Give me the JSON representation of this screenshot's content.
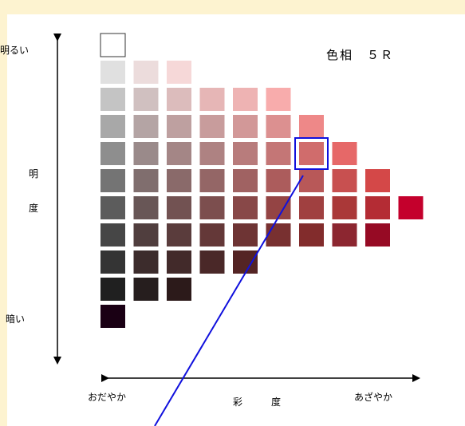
{
  "hue_label": "色相　５Ｒ",
  "axes": {
    "lightness_top": "明るい",
    "lightness_title_1": "明",
    "lightness_title_2": "度",
    "lightness_bottom": "暗い",
    "chroma_left": "おだやか",
    "chroma_title_1": "彩",
    "chroma_title_2": "度",
    "chroma_right": "あざやか"
  },
  "colors": {
    "arrow": "#000000",
    "highlight": "#1010dd",
    "pointer": "#1010dd",
    "background": "#fdf3d0"
  },
  "grid": {
    "rows": [
      {
        "row": 0,
        "cells": [
          "#ffffff"
        ],
        "outlined": true
      },
      {
        "row": 1,
        "cells": [
          "#e0e0e0",
          "#ecdcdc",
          "#f6d8d8"
        ]
      },
      {
        "row": 2,
        "cells": [
          "#c4c4c4",
          "#d0c0c0",
          "#dcbcbc",
          "#e6b6b6",
          "#eeb3b3",
          "#f8acac"
        ]
      },
      {
        "row": 3,
        "cells": [
          "#a8a8a8",
          "#b4a4a4",
          "#bea0a0",
          "#c89c9c",
          "#d29898",
          "#dc9090",
          "#ee8888"
        ]
      },
      {
        "row": 4,
        "cells": [
          "#8e8e8e",
          "#9a8a8a",
          "#a48686",
          "#ae8282",
          "#b87c7c",
          "#c47676",
          "#d06c6c",
          "#e66868"
        ]
      },
      {
        "row": 5,
        "cells": [
          "#747474",
          "#806e6e",
          "#8a6a6a",
          "#946666",
          "#a06262",
          "#ac5c5c",
          "#b85858",
          "#c85050",
          "#d44848"
        ]
      },
      {
        "row": 6,
        "cells": [
          "#5c5c5c",
          "#685656",
          "#725252",
          "#7c4e4e",
          "#884848",
          "#944444",
          "#a04040",
          "#aa3838",
          "#b42c34",
          "#c4002c"
        ]
      },
      {
        "row": 7,
        "cells": [
          "#464646",
          "#503e3e",
          "#5a3c3c",
          "#643838",
          "#6e3434",
          "#783030",
          "#822c2c",
          "#8c2630",
          "#960a24"
        ]
      },
      {
        "row": 8,
        "cells": [
          "#343434",
          "#3c2c2c",
          "#422a2a",
          "#4a2828",
          "#542424"
        ]
      },
      {
        "row": 9,
        "cells": [
          "#202020",
          "#261e1e",
          "#2c1a1a"
        ]
      },
      {
        "row": 10,
        "cells": [
          "#1a0014"
        ]
      }
    ],
    "highlighted": {
      "row": 4,
      "col": 6
    }
  }
}
